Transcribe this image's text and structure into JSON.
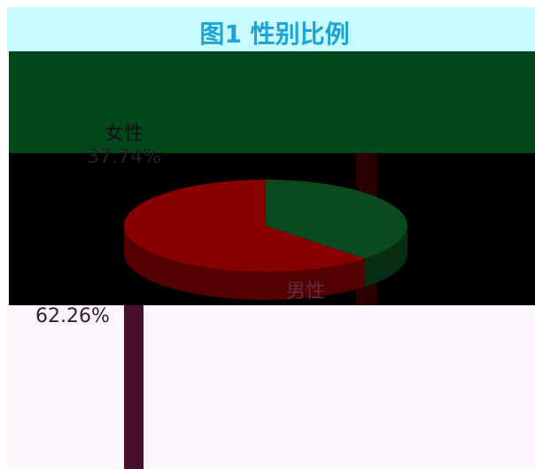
{
  "chart_data": {
    "type": "pie",
    "title": "图1 性别比例",
    "categories": [
      "女性",
      "男性"
    ],
    "values": [
      37.74,
      62.26
    ],
    "value_labels": [
      "37.74%",
      "62.26%"
    ],
    "colors": [
      "#0a4a1e",
      "#8a0000"
    ]
  }
}
